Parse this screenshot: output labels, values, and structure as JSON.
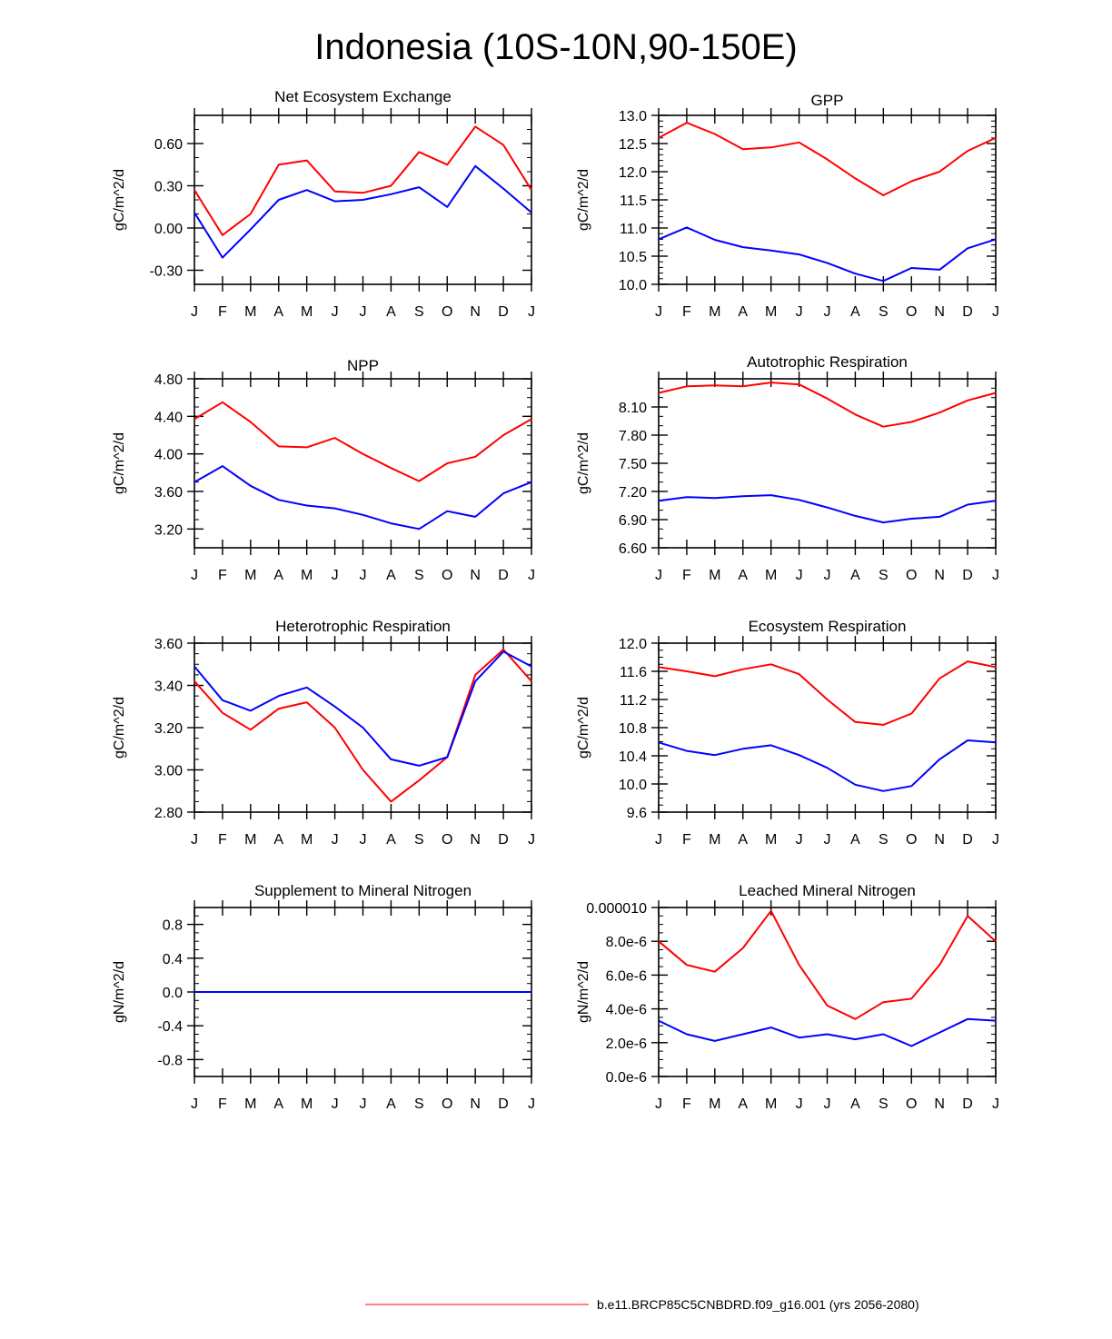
{
  "title": "Indonesia (10S-10N,90-150E)",
  "legend": {
    "label": "b.e11.BRCP85C5CNBDRD.f09_g16.001 (yrs 2056-2080)",
    "color": "#ff0000"
  },
  "colors": {
    "series_a": "#ff0000",
    "series_b": "#0000ff"
  },
  "chart_data": [
    {
      "type": "line",
      "title": "Net Ecosystem Exchange",
      "ylabel": "gC/m^2/d",
      "xlabel": "",
      "categories": [
        "J",
        "F",
        "M",
        "A",
        "M",
        "J",
        "J",
        "A",
        "S",
        "O",
        "N",
        "D",
        "J"
      ],
      "ylim": [
        -0.4,
        0.8
      ],
      "yticks": [
        -0.3,
        0.0,
        0.3,
        0.6
      ],
      "ytick_labels": [
        "-0.30",
        "0.00",
        "0.30",
        "0.60"
      ],
      "yminor": 0.1,
      "series": [
        {
          "name": "red",
          "color": "#ff0000",
          "values": [
            0.27,
            -0.05,
            0.1,
            0.45,
            0.48,
            0.26,
            0.25,
            0.3,
            0.54,
            0.45,
            0.72,
            0.59,
            0.27
          ]
        },
        {
          "name": "blue",
          "color": "#0000ff",
          "values": [
            0.11,
            -0.21,
            -0.01,
            0.2,
            0.27,
            0.19,
            0.2,
            0.24,
            0.29,
            0.15,
            0.44,
            0.28,
            0.11
          ]
        }
      ]
    },
    {
      "type": "line",
      "title": "GPP",
      "ylabel": "gC/m^2/d",
      "xlabel": "",
      "categories": [
        "J",
        "F",
        "M",
        "A",
        "M",
        "J",
        "J",
        "A",
        "S",
        "O",
        "N",
        "D",
        "J"
      ],
      "ylim": [
        10.0,
        13.0
      ],
      "yticks": [
        10.0,
        10.5,
        11.0,
        11.5,
        12.0,
        12.5,
        13.0
      ],
      "ytick_labels": [
        "10.0",
        "10.5",
        "11.0",
        "11.5",
        "12.0",
        "12.5",
        "13.0"
      ],
      "yminor": 0.1,
      "series": [
        {
          "name": "red",
          "color": "#ff0000",
          "values": [
            12.6,
            12.87,
            12.67,
            12.4,
            12.43,
            12.52,
            12.22,
            11.88,
            11.58,
            11.83,
            12.0,
            12.37,
            12.6
          ]
        },
        {
          "name": "blue",
          "color": "#0000ff",
          "values": [
            10.8,
            11.01,
            10.79,
            10.66,
            10.6,
            10.53,
            10.38,
            10.19,
            10.06,
            10.29,
            10.26,
            10.64,
            10.8
          ]
        }
      ]
    },
    {
      "type": "line",
      "title": "NPP",
      "ylabel": "gC/m^2/d",
      "xlabel": "",
      "categories": [
        "J",
        "F",
        "M",
        "A",
        "M",
        "J",
        "J",
        "A",
        "S",
        "O",
        "N",
        "D",
        "J"
      ],
      "ylim": [
        3.0,
        4.8
      ],
      "yticks": [
        3.2,
        3.6,
        4.0,
        4.4,
        4.8
      ],
      "ytick_labels": [
        "3.20",
        "3.60",
        "4.00",
        "4.40",
        "4.80"
      ],
      "yminor": 0.1,
      "series": [
        {
          "name": "red",
          "color": "#ff0000",
          "values": [
            4.37,
            4.55,
            4.34,
            4.08,
            4.07,
            4.17,
            4.0,
            3.85,
            3.71,
            3.9,
            3.97,
            4.2,
            4.37
          ]
        },
        {
          "name": "blue",
          "color": "#0000ff",
          "values": [
            3.7,
            3.87,
            3.66,
            3.51,
            3.45,
            3.42,
            3.35,
            3.26,
            3.2,
            3.39,
            3.33,
            3.58,
            3.7
          ]
        }
      ]
    },
    {
      "type": "line",
      "title": "Autotrophic Respiration",
      "ylabel": "gC/m^2/d",
      "xlabel": "",
      "categories": [
        "J",
        "F",
        "M",
        "A",
        "M",
        "J",
        "J",
        "A",
        "S",
        "O",
        "N",
        "D",
        "J"
      ],
      "ylim": [
        6.6,
        8.4
      ],
      "yticks": [
        6.6,
        6.9,
        7.2,
        7.5,
        7.8,
        8.1
      ],
      "ytick_labels": [
        "6.60",
        "6.90",
        "7.20",
        "7.50",
        "7.80",
        "8.10"
      ],
      "yminor": 0.1,
      "series": [
        {
          "name": "red",
          "color": "#ff0000",
          "values": [
            8.25,
            8.32,
            8.33,
            8.32,
            8.36,
            8.34,
            8.19,
            8.02,
            7.89,
            7.94,
            8.04,
            8.17,
            8.25
          ]
        },
        {
          "name": "blue",
          "color": "#0000ff",
          "values": [
            7.1,
            7.14,
            7.13,
            7.15,
            7.16,
            7.11,
            7.03,
            6.94,
            6.87,
            6.91,
            6.93,
            7.06,
            7.1
          ]
        }
      ]
    },
    {
      "type": "line",
      "title": "Heterotrophic Respiration",
      "ylabel": "gC/m^2/d",
      "xlabel": "",
      "categories": [
        "J",
        "F",
        "M",
        "A",
        "M",
        "J",
        "J",
        "A",
        "S",
        "O",
        "N",
        "D",
        "J"
      ],
      "ylim": [
        2.8,
        3.6
      ],
      "yticks": [
        2.8,
        3.0,
        3.2,
        3.4,
        3.6
      ],
      "ytick_labels": [
        "2.80",
        "3.00",
        "3.20",
        "3.40",
        "3.60"
      ],
      "yminor": 0.05,
      "series": [
        {
          "name": "red",
          "color": "#ff0000",
          "values": [
            3.42,
            3.27,
            3.19,
            3.29,
            3.32,
            3.2,
            3.0,
            2.85,
            2.95,
            3.06,
            3.45,
            3.57,
            3.42
          ]
        },
        {
          "name": "blue",
          "color": "#0000ff",
          "values": [
            3.49,
            3.33,
            3.28,
            3.35,
            3.39,
            3.3,
            3.2,
            3.05,
            3.02,
            3.06,
            3.42,
            3.56,
            3.49
          ]
        }
      ]
    },
    {
      "type": "line",
      "title": "Ecosystem Respiration",
      "ylabel": "gC/m^2/d",
      "xlabel": "",
      "categories": [
        "J",
        "F",
        "M",
        "A",
        "M",
        "J",
        "J",
        "A",
        "S",
        "O",
        "N",
        "D",
        "J"
      ],
      "ylim": [
        9.6,
        12.0
      ],
      "yticks": [
        9.6,
        10.0,
        10.4,
        10.8,
        11.2,
        11.6,
        12.0
      ],
      "ytick_labels": [
        "9.6",
        "10.0",
        "10.4",
        "10.8",
        "11.2",
        "11.6",
        "12.0"
      ],
      "yminor": 0.1,
      "series": [
        {
          "name": "red",
          "color": "#ff0000",
          "values": [
            11.66,
            11.6,
            11.53,
            11.63,
            11.7,
            11.56,
            11.2,
            10.88,
            10.84,
            11.0,
            11.5,
            11.74,
            11.66
          ]
        },
        {
          "name": "blue",
          "color": "#0000ff",
          "values": [
            10.59,
            10.47,
            10.41,
            10.5,
            10.55,
            10.41,
            10.23,
            9.99,
            9.9,
            9.97,
            10.35,
            10.62,
            10.59
          ]
        }
      ]
    },
    {
      "type": "line",
      "title": "Supplement to Mineral Nitrogen",
      "ylabel": "gN/m^2/d",
      "xlabel": "",
      "categories": [
        "J",
        "F",
        "M",
        "A",
        "M",
        "J",
        "J",
        "A",
        "S",
        "O",
        "N",
        "D",
        "J"
      ],
      "ylim": [
        -1.0,
        1.0
      ],
      "yticks": [
        -0.8,
        -0.4,
        0.0,
        0.4,
        0.8
      ],
      "ytick_labels": [
        "-0.8",
        "-0.4",
        "0.0",
        "0.4",
        "0.8"
      ],
      "yminor": 0.1,
      "series": [
        {
          "name": "red",
          "color": "#ff0000",
          "values": [
            0,
            0,
            0,
            0,
            0,
            0,
            0,
            0,
            0,
            0,
            0,
            0,
            0
          ]
        },
        {
          "name": "blue",
          "color": "#0000ff",
          "values": [
            0,
            0,
            0,
            0,
            0,
            0,
            0,
            0,
            0,
            0,
            0,
            0,
            0
          ]
        }
      ]
    },
    {
      "type": "line",
      "title": "Leached Mineral Nitrogen",
      "ylabel": "gN/m^2/d",
      "xlabel": "",
      "categories": [
        "J",
        "F",
        "M",
        "A",
        "M",
        "J",
        "J",
        "A",
        "S",
        "O",
        "N",
        "D",
        "J"
      ],
      "ylim": [
        0.0,
        1e-05
      ],
      "yticks": [
        0.0,
        2e-06,
        4e-06,
        6e-06,
        8e-06,
        1e-05
      ],
      "ytick_labels": [
        "0.0e-6",
        "2.0e-6",
        "4.0e-6",
        "6.0e-6",
        "8.0e-6",
        "0.000010"
      ],
      "yminor": 5e-07,
      "series": [
        {
          "name": "red",
          "color": "#ff0000",
          "values": [
            8e-06,
            6.6e-06,
            6.2e-06,
            7.6e-06,
            9.8e-06,
            6.6e-06,
            4.2e-06,
            3.4e-06,
            4.4e-06,
            4.6e-06,
            6.6e-06,
            9.5e-06,
            8e-06
          ]
        },
        {
          "name": "blue",
          "color": "#0000ff",
          "values": [
            3.3e-06,
            2.5e-06,
            2.1e-06,
            2.5e-06,
            2.9e-06,
            2.3e-06,
            2.5e-06,
            2.2e-06,
            2.5e-06,
            1.8e-06,
            2.6e-06,
            3.4e-06,
            3.3e-06
          ]
        }
      ]
    }
  ]
}
